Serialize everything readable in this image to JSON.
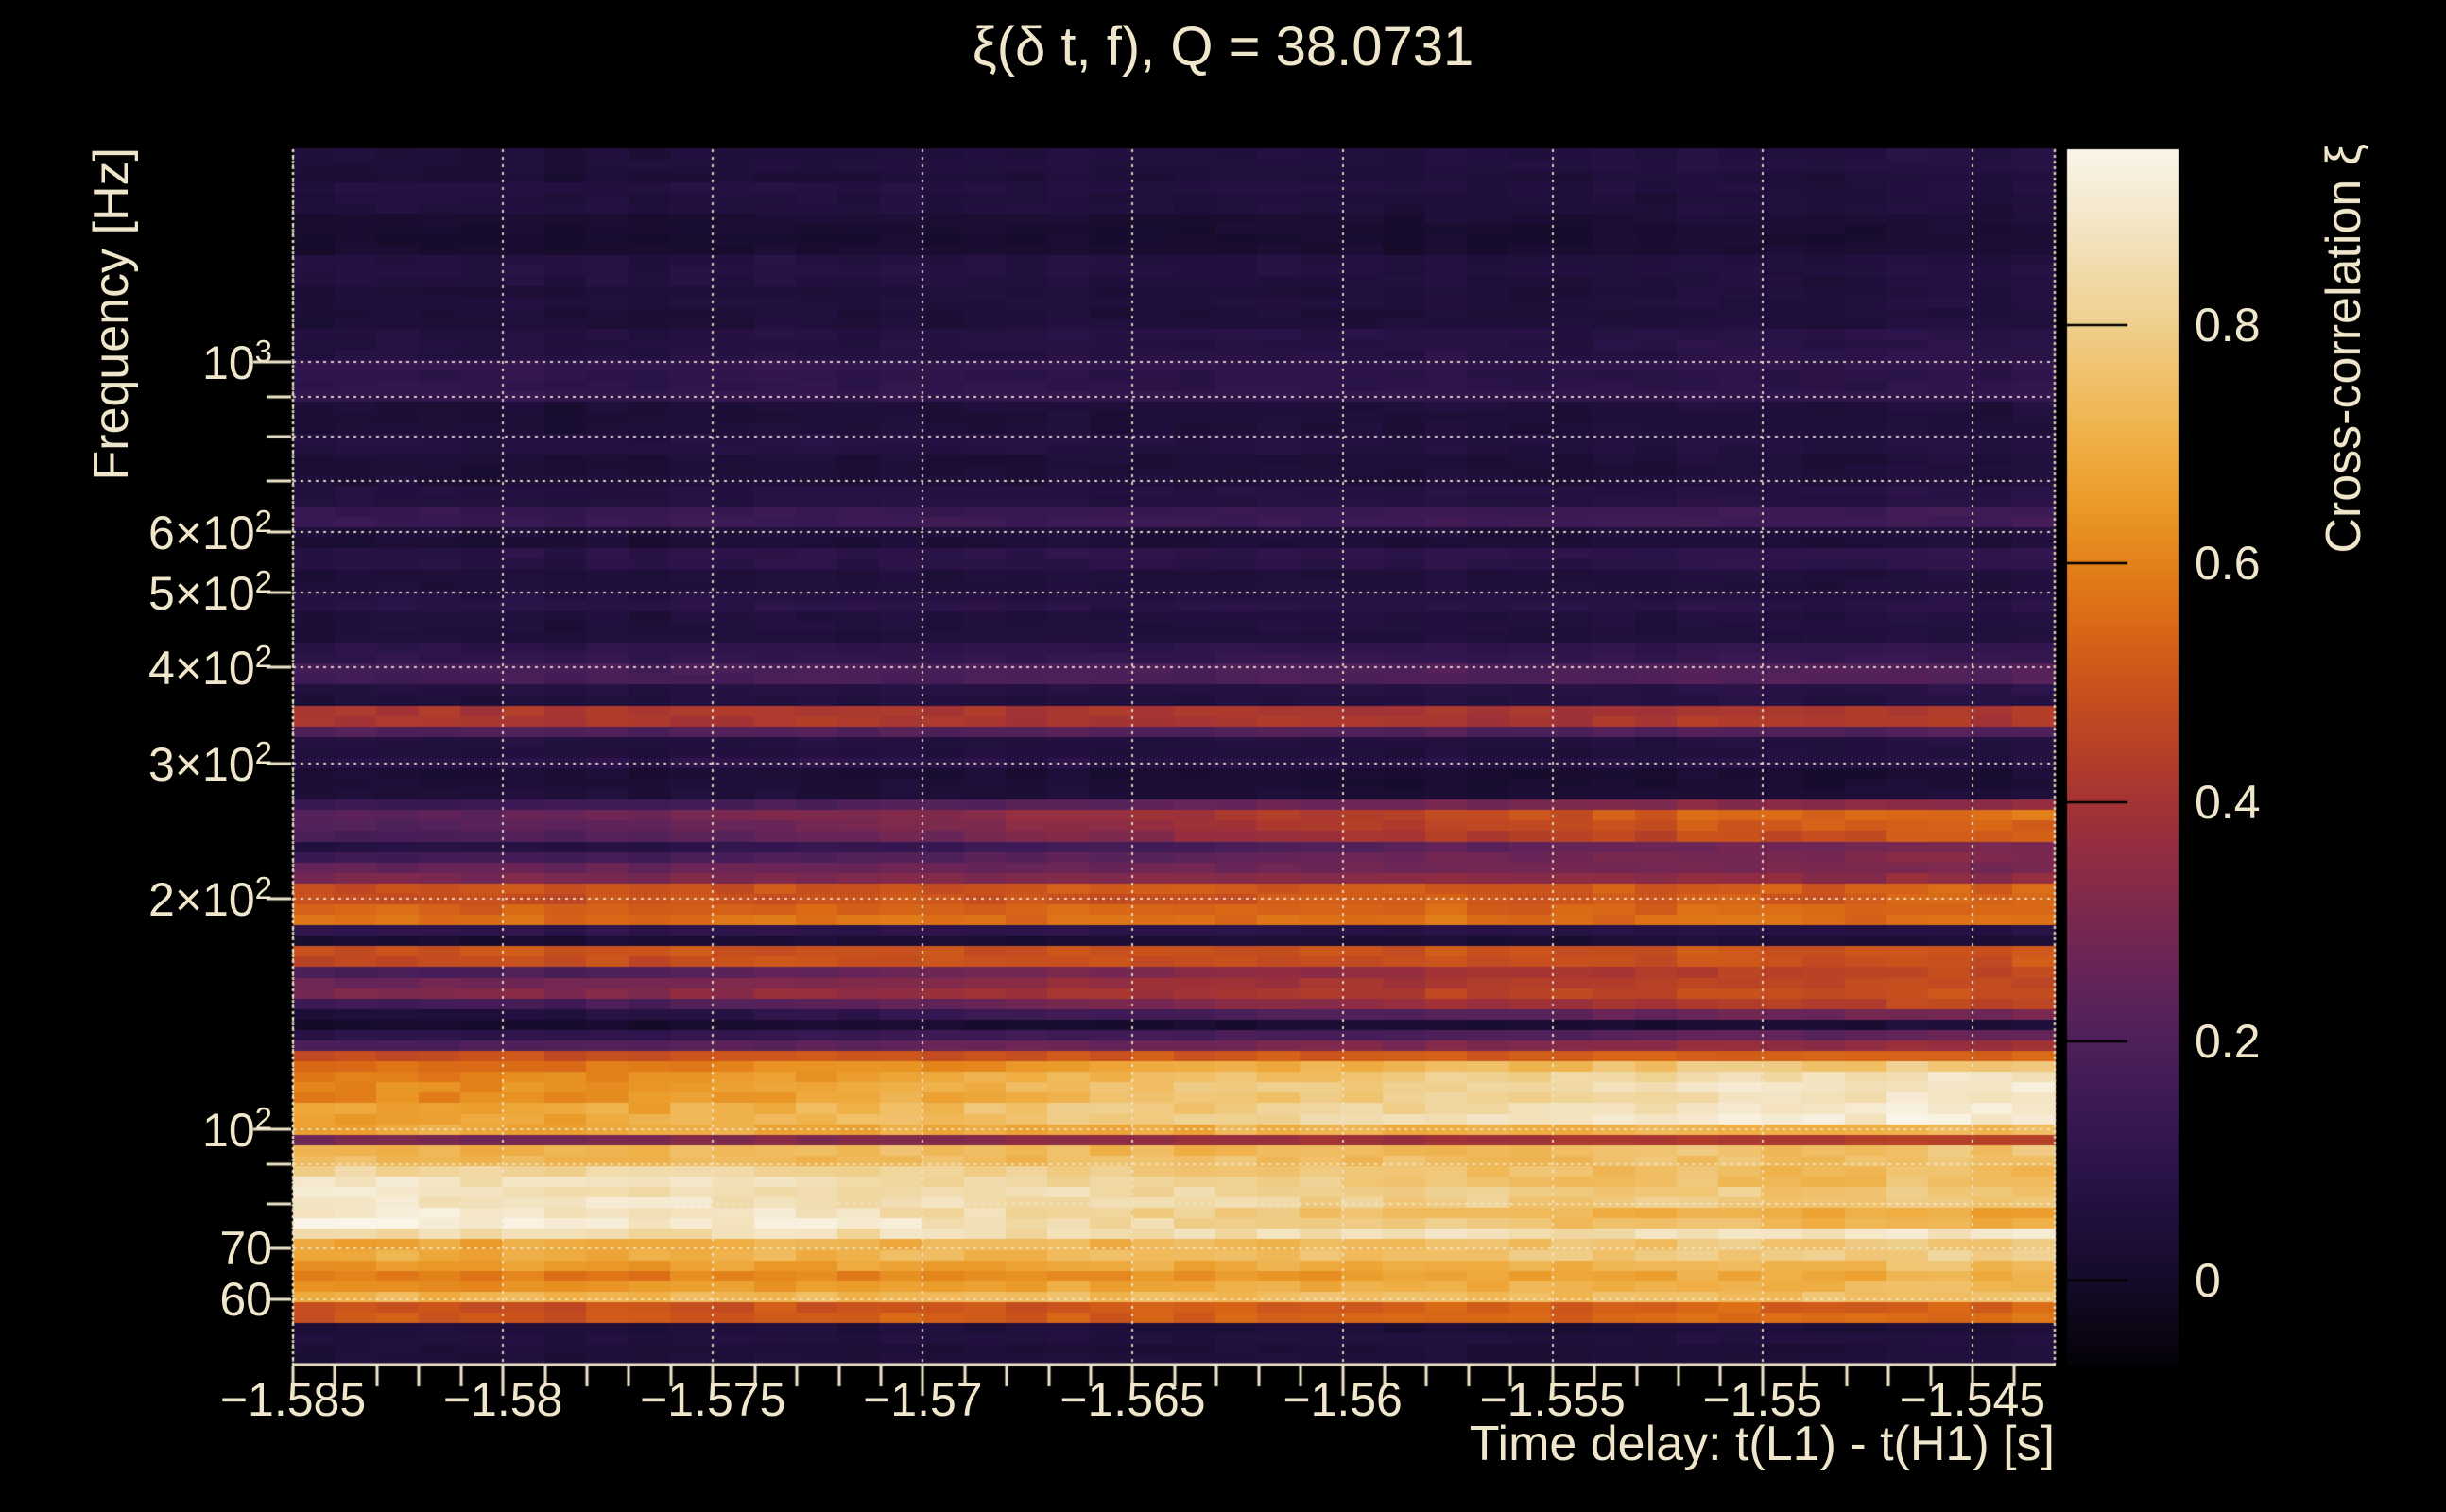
{
  "title": "ξ(δ t, f), Q = 38.0731",
  "colors": {
    "background": "#000000",
    "text": "#efe6cb",
    "grid": "#efe6cb",
    "axis": "#efe6cb",
    "colorbar_tick": "#000000"
  },
  "chart_data": {
    "type": "heatmap",
    "title": "ξ(δ t, f), Q = 38.0731",
    "q_value": 38.0731,
    "xlabel": "Time delay: t(L1) - t(H1) [s]",
    "ylabel": "Frequency [Hz]",
    "zlabel": "Cross-correlation ξ",
    "x_range": [
      -1.585,
      -1.54304
    ],
    "x_major_ticks": [
      -1.585,
      -1.58,
      -1.575,
      -1.57,
      -1.565,
      -1.56,
      -1.555,
      -1.55,
      -1.545
    ],
    "x_tick_labels": [
      "−1.585",
      "−1.58",
      "−1.575",
      "−1.57",
      "−1.565",
      "−1.56",
      "−1.555",
      "−1.55",
      "−1.545"
    ],
    "x_minor_step": 0.001,
    "y_scale": "log",
    "y_range_hz": [
      49.5,
      1892
    ],
    "y_gridlines_hz": [
      60,
      70,
      80,
      90,
      100,
      200,
      300,
      400,
      500,
      600,
      700,
      800,
      900,
      1000
    ],
    "y_tick_labels": [
      {
        "value": 1000,
        "label": "10^3"
      },
      {
        "value": 600,
        "label": "6×10^2"
      },
      {
        "value": 500,
        "label": "5×10^2"
      },
      {
        "value": 400,
        "label": "4×10^2"
      },
      {
        "value": 300,
        "label": "3×10^2"
      },
      {
        "value": 200,
        "label": "2×10^2"
      },
      {
        "value": 100,
        "label": "10^2"
      },
      {
        "value": 70,
        "label": "70"
      },
      {
        "value": 60,
        "label": "60"
      }
    ],
    "z_range": [
      -0.07,
      0.947
    ],
    "colorbar_ticks": [
      {
        "value": 0.8,
        "label": "0.8"
      },
      {
        "value": 0.6,
        "label": "0.6"
      },
      {
        "value": 0.4,
        "label": "0.4"
      },
      {
        "value": 0.2,
        "label": "0.2"
      },
      {
        "value": 0.0,
        "label": "0"
      }
    ],
    "colormap_stops": [
      {
        "v": -0.07,
        "c": "#050208"
      },
      {
        "v": 0.0,
        "c": "#150b29"
      },
      {
        "v": 0.05,
        "c": "#200f3c"
      },
      {
        "v": 0.1,
        "c": "#2d144b"
      },
      {
        "v": 0.15,
        "c": "#3c1a55"
      },
      {
        "v": 0.2,
        "c": "#4e205a"
      },
      {
        "v": 0.25,
        "c": "#632459"
      },
      {
        "v": 0.3,
        "c": "#782850"
      },
      {
        "v": 0.35,
        "c": "#8e2c44"
      },
      {
        "v": 0.4,
        "c": "#a43334"
      },
      {
        "v": 0.45,
        "c": "#b84226"
      },
      {
        "v": 0.5,
        "c": "#ca531c"
      },
      {
        "v": 0.55,
        "c": "#d96916"
      },
      {
        "v": 0.6,
        "c": "#e38119"
      },
      {
        "v": 0.65,
        "c": "#ea9a28"
      },
      {
        "v": 0.7,
        "c": "#efae44"
      },
      {
        "v": 0.75,
        "c": "#f0bf66"
      },
      {
        "v": 0.8,
        "c": "#efcf8c"
      },
      {
        "v": 0.85,
        "c": "#f1dcae"
      },
      {
        "v": 0.9,
        "c": "#f5e9cf"
      },
      {
        "v": 0.945,
        "c": "#faf5e8"
      }
    ],
    "time_bins": 42,
    "freq_rows": 116,
    "bands_f_lo_f_hi_xiLeft_xiRight": [
      [
        49.5,
        55.7,
        0.05,
        0.05
      ],
      [
        55.7,
        56.9,
        0.28,
        0.32
      ],
      [
        56.9,
        59.6,
        0.5,
        0.55
      ],
      [
        59.6,
        61.6,
        0.7,
        0.74
      ],
      [
        61.6,
        64.0,
        0.62,
        0.72
      ],
      [
        64.0,
        66.0,
        0.58,
        0.7
      ],
      [
        66.0,
        68.5,
        0.65,
        0.75
      ],
      [
        68.5,
        71.3,
        0.68,
        0.78
      ],
      [
        71.3,
        73.5,
        0.86,
        0.88
      ],
      [
        73.5,
        76.0,
        0.92,
        0.7
      ],
      [
        76.0,
        78.0,
        0.9,
        0.62
      ],
      [
        78.0,
        80.0,
        0.92,
        0.68
      ],
      [
        80.0,
        84.0,
        0.9,
        0.78
      ],
      [
        84.0,
        88.0,
        0.86,
        0.72
      ],
      [
        88.0,
        91.0,
        0.82,
        0.72
      ],
      [
        91.0,
        96.0,
        0.72,
        0.75
      ],
      [
        96.0,
        100.0,
        0.28,
        0.42
      ],
      [
        100.0,
        103.0,
        0.7,
        0.73
      ],
      [
        103.0,
        107.0,
        0.66,
        0.9
      ],
      [
        107.0,
        110.0,
        0.64,
        0.92
      ],
      [
        110.0,
        114.0,
        0.62,
        0.9
      ],
      [
        114.0,
        118.0,
        0.6,
        0.88
      ],
      [
        118.0,
        121.5,
        0.56,
        0.78
      ],
      [
        121.5,
        124.5,
        0.52,
        0.66
      ],
      [
        124.5,
        129.0,
        0.5,
        0.55
      ],
      [
        129.0,
        132.0,
        0.2,
        0.38
      ],
      [
        132.0,
        136.0,
        0.1,
        0.25
      ],
      [
        136.0,
        141.0,
        0.02,
        0.04
      ],
      [
        141.0,
        146.0,
        0.05,
        0.3
      ],
      [
        146.0,
        150.0,
        0.15,
        0.45
      ],
      [
        150.0,
        154.0,
        0.32,
        0.5
      ],
      [
        154.0,
        159.0,
        0.28,
        0.48
      ],
      [
        159.0,
        165.0,
        0.18,
        0.45
      ],
      [
        165.0,
        169.0,
        0.48,
        0.5
      ],
      [
        169.0,
        176.0,
        0.5,
        0.5
      ],
      [
        176.0,
        182.0,
        0.03,
        0.04
      ],
      [
        182.0,
        187.0,
        0.1,
        0.07
      ],
      [
        187.0,
        200.0,
        0.55,
        0.55
      ],
      [
        200.0,
        210.0,
        0.48,
        0.52
      ],
      [
        210.0,
        215.0,
        0.3,
        0.35
      ],
      [
        215.0,
        222.0,
        0.25,
        0.3
      ],
      [
        222.0,
        228.0,
        0.15,
        0.3
      ],
      [
        228.0,
        237.0,
        0.07,
        0.3
      ],
      [
        237.0,
        247.0,
        0.18,
        0.5
      ],
      [
        247.0,
        258.0,
        0.22,
        0.55
      ],
      [
        258.0,
        270.0,
        0.15,
        0.35
      ],
      [
        270.0,
        295.0,
        0.04,
        0.03
      ],
      [
        295.0,
        306.0,
        0.1,
        0.08
      ],
      [
        306.0,
        330.0,
        0.06,
        0.06
      ],
      [
        330.0,
        336.0,
        0.2,
        0.2
      ],
      [
        336.0,
        353.0,
        0.42,
        0.42
      ],
      [
        353.0,
        380.0,
        0.06,
        0.08
      ],
      [
        380.0,
        403.0,
        0.18,
        0.22
      ],
      [
        403.0,
        430.0,
        0.1,
        0.12
      ],
      [
        430.0,
        470.0,
        0.05,
        0.06
      ],
      [
        470.0,
        500.0,
        0.08,
        0.08
      ],
      [
        500.0,
        540.0,
        0.04,
        0.05
      ],
      [
        540.0,
        570.0,
        0.08,
        0.1
      ],
      [
        570.0,
        615.0,
        0.04,
        0.05
      ],
      [
        615.0,
        650.0,
        0.13,
        0.15
      ],
      [
        650.0,
        700.0,
        0.06,
        0.07
      ],
      [
        700.0,
        760.0,
        0.04,
        0.05
      ],
      [
        760.0,
        820.0,
        0.07,
        0.06
      ],
      [
        820.0,
        880.0,
        0.04,
        0.05
      ],
      [
        880.0,
        1000.0,
        0.11,
        0.1
      ],
      [
        1000.0,
        1100.0,
        0.06,
        0.08
      ],
      [
        1100.0,
        1250.0,
        0.04,
        0.05
      ],
      [
        1250.0,
        1400.0,
        0.07,
        0.06
      ],
      [
        1400.0,
        1550.0,
        0.02,
        0.03
      ],
      [
        1550.0,
        1700.0,
        0.06,
        0.05
      ],
      [
        1700.0,
        1892.0,
        0.04,
        0.06
      ]
    ]
  }
}
